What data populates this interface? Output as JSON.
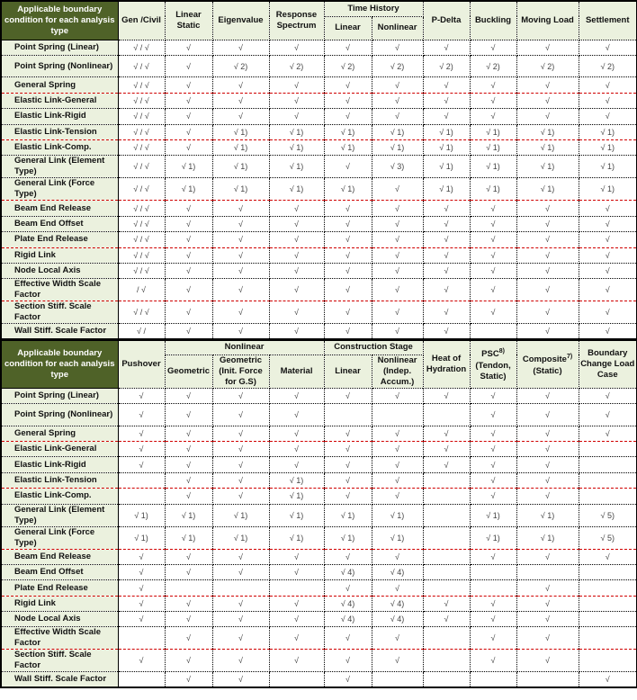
{
  "colors": {
    "corner_bg": "#4f6228",
    "header_bg": "#ebf1de",
    "separator": "#d00000"
  },
  "top": {
    "corner": "Applicable boundary condition for each analysis type",
    "headers": {
      "gen": "Gen /Civil",
      "ls": "Linear Static",
      "eig": "Eigenvalue",
      "rs": "Response Spectrum",
      "th": "Time History",
      "thl": "Linear",
      "thnl": "Nonlinear",
      "pd": "P-Delta",
      "buck": "Buckling",
      "ml": "Moving Load",
      "set": "Settlement"
    },
    "rows": [
      {
        "label": "Point Spring (Linear)",
        "cells": [
          "√ / √",
          "√",
          "√",
          "√",
          "√",
          "√",
          "√",
          "√",
          "√",
          "√"
        ]
      },
      {
        "label": "Point Spring (Nonlinear)",
        "cells": [
          "√ / √",
          "√",
          "√ 2)",
          "√ 2)",
          "√ 2)",
          "√ 2)",
          "√ 2)",
          "√ 2)",
          "√ 2)",
          "√ 2)"
        ]
      },
      {
        "label": "General Spring",
        "cells": [
          "√ / √",
          "√",
          "√",
          "√",
          "√",
          "√",
          "√",
          "√",
          "√",
          "√"
        ]
      },
      {
        "label": "Elastic Link-General",
        "sep": true,
        "cells": [
          "√ / √",
          "√",
          "√",
          "√",
          "√",
          "√",
          "√",
          "√",
          "√",
          "√"
        ]
      },
      {
        "label": "Elastic Link-Rigid",
        "cells": [
          "√ / √",
          "√",
          "√",
          "√",
          "√",
          "√",
          "√",
          "√",
          "√",
          "√"
        ]
      },
      {
        "label": "Elastic Link-Tension",
        "cells": [
          "√ / √",
          "√",
          "√ 1)",
          "√ 1)",
          "√ 1)",
          "√ 1)",
          "√ 1)",
          "√ 1)",
          "√ 1)",
          "√ 1)"
        ]
      },
      {
        "label": "Elastic Link-Comp.",
        "sep": true,
        "cells": [
          "√ / √",
          "√",
          "√ 1)",
          "√ 1)",
          "√ 1)",
          "√ 1)",
          "√ 1)",
          "√ 1)",
          "√ 1)",
          "√ 1)"
        ]
      },
      {
        "label": "General Link (Element Type)",
        "cells": [
          "√ / √",
          "√ 1)",
          "√ 1)",
          "√ 1)",
          "√",
          "√ 3)",
          "√ 1)",
          "√ 1)",
          "√ 1)",
          "√ 1)"
        ]
      },
      {
        "label": "General Link (Force Type)",
        "cells": [
          "√ / √",
          "√ 1)",
          "√ 1)",
          "√ 1)",
          "√ 1)",
          "√",
          "√ 1)",
          "√ 1)",
          "√ 1)",
          "√ 1)"
        ]
      },
      {
        "label": "Beam End Release",
        "sep": true,
        "cells": [
          "√ / √",
          "√",
          "√",
          "√",
          "√",
          "√",
          "√",
          "√",
          "√",
          "√"
        ]
      },
      {
        "label": "Beam End Offset",
        "cells": [
          "√ / √",
          "√",
          "√",
          "√",
          "√",
          "√",
          "√",
          "√",
          "√",
          "√"
        ]
      },
      {
        "label": "Plate End Release",
        "cells": [
          "√ / √",
          "√",
          "√",
          "√",
          "√",
          "√",
          "√",
          "√",
          "√",
          "√"
        ]
      },
      {
        "label": "Rigid Link",
        "sep": true,
        "cells": [
          "√ / √",
          "√",
          "√",
          "√",
          "√",
          "√",
          "√",
          "√",
          "√",
          "√"
        ]
      },
      {
        "label": "Node Local Axis",
        "cells": [
          "√ / √",
          "√",
          "√",
          "√",
          "√",
          "√",
          "√",
          "√",
          "√",
          "√"
        ]
      },
      {
        "label": "Effective Width Scale Factor",
        "cells": [
          "/ √",
          "√",
          "√",
          "√",
          "√",
          "√",
          "√",
          "√",
          "√",
          "√"
        ]
      },
      {
        "label": "Section Stiff. Scale Factor",
        "sep": true,
        "cells": [
          "√ / √",
          "√",
          "√",
          "√",
          "√",
          "√",
          "√",
          "√",
          "√",
          "√"
        ]
      },
      {
        "label": "Wall Stiff. Scale Factor",
        "cells": [
          "√ /",
          "√",
          "√",
          "√",
          "√",
          "√",
          "√",
          "",
          "√",
          "√"
        ]
      }
    ]
  },
  "bottom": {
    "corner": "Applicable boundary condition for each analysis type",
    "headers": {
      "push": "Pushover",
      "nl": "Nonlinear",
      "geo": "Geometric",
      "geoinit": "Geometric (Init. Force for G.S)",
      "mat": "Material",
      "cs": "Construction Stage",
      "csl": "Linear",
      "csnl": "Nonlinear (Indep. Accum.)",
      "heat": "Heat of Hydration",
      "psc": "PSC",
      "psc_note": "8)",
      "psc_sub": "(Tendon, Static)",
      "comp": "Composite",
      "comp_note": "7)",
      "comp_sub": "(Static)",
      "bc": "Boundary Change Load Case"
    },
    "rows": [
      {
        "label": "Point Spring (Linear)",
        "cells": [
          "√",
          "√",
          "√",
          "√",
          "√",
          "√",
          "√",
          "√",
          "√",
          "√"
        ]
      },
      {
        "label": "Point Spring (Nonlinear)",
        "cells": [
          "√",
          "√",
          "√",
          "√",
          "",
          "",
          "",
          "√",
          "√",
          "√"
        ]
      },
      {
        "label": "General Spring",
        "cells": [
          "√",
          "√",
          "√",
          "√",
          "√",
          "√",
          "√",
          "√",
          "√",
          "√"
        ]
      },
      {
        "label": "Elastic Link-General",
        "sep": true,
        "cells": [
          "√",
          "√",
          "√",
          "√",
          "√",
          "√",
          "√",
          "√",
          "√",
          ""
        ]
      },
      {
        "label": "Elastic Link-Rigid",
        "cells": [
          "√",
          "√",
          "√",
          "√",
          "√",
          "√",
          "√",
          "√",
          "√",
          ""
        ]
      },
      {
        "label": "Elastic Link-Tension",
        "cells": [
          "",
          "√",
          "√",
          "√ 1)",
          "√",
          "√",
          "",
          "√",
          "√",
          ""
        ]
      },
      {
        "label": "Elastic Link-Comp.",
        "sep": true,
        "cells": [
          "",
          "√",
          "√",
          "√ 1)",
          "√",
          "√",
          "",
          "√",
          "√",
          ""
        ]
      },
      {
        "label": "General Link (Element Type)",
        "cells": [
          "√ 1)",
          "√ 1)",
          "√ 1)",
          "√ 1)",
          "√ 1)",
          "√ 1)",
          "",
          "√ 1)",
          "√ 1)",
          "√ 5)"
        ]
      },
      {
        "label": "General Link (Force Type)",
        "cells": [
          "√ 1)",
          "√ 1)",
          "√ 1)",
          "√ 1)",
          "√ 1)",
          "√ 1)",
          "",
          "√ 1)",
          "√ 1)",
          "√ 5)"
        ]
      },
      {
        "label": "Beam End Release",
        "sep": true,
        "cells": [
          "√",
          "√",
          "√",
          "√",
          "√",
          "√",
          "",
          "√",
          "√",
          "√"
        ]
      },
      {
        "label": "Beam End Offset",
        "cells": [
          "√",
          "√",
          "√",
          "√",
          "√ 4)",
          "√ 4)",
          "",
          "",
          "",
          ""
        ]
      },
      {
        "label": "Plate End Release",
        "cells": [
          "√",
          "",
          "",
          "",
          "√",
          "√",
          "",
          "",
          "√",
          ""
        ]
      },
      {
        "label": "Rigid Link",
        "sep": true,
        "cells": [
          "√",
          "√",
          "√",
          "√",
          "√ 4)",
          "√ 4)",
          "√",
          "√",
          "√",
          ""
        ]
      },
      {
        "label": "Node Local Axis",
        "cells": [
          "√",
          "√",
          "√",
          "√",
          "√ 4)",
          "√ 4)",
          "√",
          "√",
          "√",
          ""
        ]
      },
      {
        "label": "Effective Width Scale Factor",
        "cells": [
          "",
          "√",
          "√",
          "√",
          "√",
          "√",
          "",
          "√",
          "√",
          ""
        ]
      },
      {
        "label": "Section Stiff. Scale Factor",
        "sep": true,
        "cells": [
          "√",
          "√",
          "√",
          "√",
          "√",
          "√",
          "",
          "√",
          "√",
          ""
        ]
      },
      {
        "label": "Wall Stiff. Scale Factor",
        "cells": [
          "",
          "√",
          "√",
          "",
          "√",
          "",
          "",
          "",
          "",
          "√"
        ]
      }
    ]
  }
}
